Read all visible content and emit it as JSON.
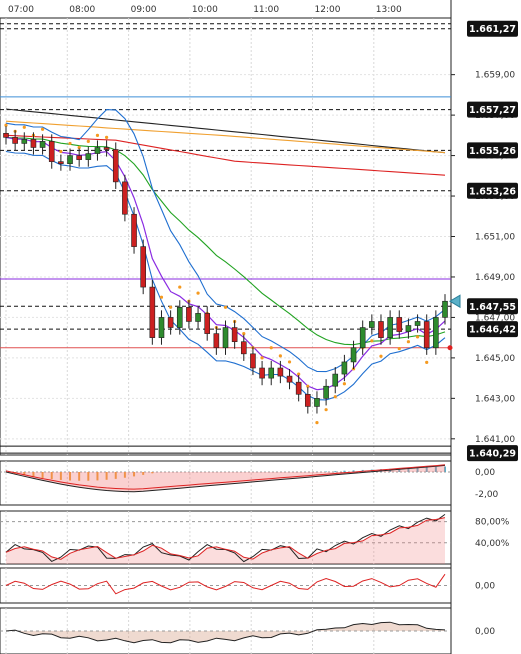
{
  "chart_data": [
    {
      "type": "candlestick",
      "name": "",
      "x_ticks": [
        "07:00",
        "08:00",
        "09:00",
        "10:00",
        "11:00",
        "12:00",
        "13:00"
      ],
      "y_ticks": [
        "1.659,00",
        "1.657,00",
        "1.655,00",
        "1.653,00",
        "1.651,00",
        "1.649,00",
        "1.647,00",
        "1.645,00",
        "1.643,00",
        "1.641,00"
      ],
      "ylim": [
        1.6402,
        1.6618
      ],
      "grid": true,
      "price_flags": [
        {
          "label": "1.661,27",
          "value": 1.66127,
          "style": "dashed"
        },
        {
          "label": "1.657,27",
          "value": 1.65727,
          "style": "dashed"
        },
        {
          "label": "1.655,26",
          "value": 1.65526,
          "style": "dashed"
        },
        {
          "label": "1.653,26",
          "value": 1.65326,
          "style": "dashed"
        },
        {
          "label": "1.647,55",
          "value": 1.64755,
          "style": "dashed"
        },
        {
          "label": "1.646,42",
          "value": 1.64642,
          "style": "dashed"
        },
        {
          "label": "1.640,29",
          "value": 1.64029,
          "style": "solid"
        }
      ],
      "horizontal_lines": [
        {
          "value": 1.6579,
          "color": "#3d8fd6"
        },
        {
          "value": 1.6489,
          "color": "#8a2be2"
        },
        {
          "value": 1.6455,
          "color": "#e05050"
        }
      ],
      "close": [
        1.6559,
        1.6556,
        1.6558,
        1.6554,
        1.6557,
        1.6547,
        1.6546,
        1.655,
        1.6548,
        1.6551,
        1.6554,
        1.6553,
        1.6537,
        1.6521,
        1.6505,
        1.6485,
        1.646,
        1.647,
        1.6465,
        1.6475,
        1.6468,
        1.6472,
        1.6462,
        1.6455,
        1.6465,
        1.6458,
        1.6452,
        1.6445,
        1.644,
        1.6445,
        1.6441,
        1.6438,
        1.6432,
        1.6426,
        1.643,
        1.6436,
        1.6442,
        1.6448,
        1.6455,
        1.6465,
        1.6468,
        1.646,
        1.647,
        1.6463,
        1.6466,
        1.6468,
        1.6455,
        1.647,
        1.6478
      ],
      "series_colors": {
        "candle_up": "#2e8b2e",
        "candle_down": "#cc2020",
        "bollinger": "#1f6fd0",
        "ema_short": "#8a2be2",
        "ema_mid": "#22a322",
        "ema_long": "#dd2222",
        "sma_orange": "#f0a030",
        "sma_black": "#222222",
        "parabolic_sar": "#f59a20"
      }
    },
    {
      "type": "histogram",
      "name": "",
      "y_ticks": [
        "0,00",
        "-2,00"
      ],
      "ylim": [
        -3.0,
        1.0
      ],
      "zero_line": true
    },
    {
      "type": "line",
      "name": "",
      "y_ticks": [
        "80,00%",
        "40,00%"
      ],
      "ylim": [
        0,
        100
      ]
    },
    {
      "type": "line",
      "name": "",
      "y_ticks": [
        "0,00"
      ],
      "ylim": [
        -1,
        1
      ]
    },
    {
      "type": "area",
      "name": "",
      "y_ticks": [
        "0,00"
      ],
      "ylim": [
        -1,
        1
      ]
    }
  ]
}
